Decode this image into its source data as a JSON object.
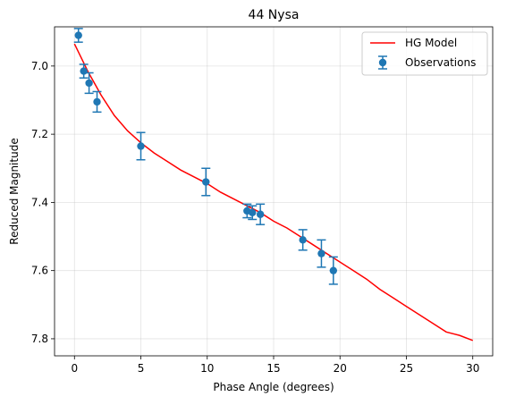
{
  "chart_data": {
    "type": "scatter",
    "title": "44 Nysa",
    "xlabel": "Phase Angle (degrees)",
    "ylabel": "Reduced Magnitude",
    "xlim": [
      -1.5,
      31.5
    ],
    "ylim": [
      7.85,
      6.885
    ],
    "y_inverted": true,
    "x_ticks": [
      0,
      5,
      10,
      15,
      20,
      25,
      30
    ],
    "y_ticks": [
      7.0,
      7.2,
      7.4,
      7.6,
      7.8
    ],
    "grid": true,
    "legend_position": "upper-right",
    "colors": {
      "model": "#ff0000",
      "observations": "#1f77b4"
    },
    "series": [
      {
        "name": "HG Model",
        "kind": "line",
        "x": [
          0,
          0.5,
          1,
          1.5,
          2,
          3,
          4,
          5,
          6,
          7,
          8,
          9,
          10,
          11,
          12,
          13,
          14,
          15,
          16,
          17,
          18,
          19,
          20,
          21,
          22,
          23,
          24,
          25,
          26,
          27,
          28,
          29,
          30
        ],
        "y": [
          6.935,
          6.975,
          7.015,
          7.05,
          7.085,
          7.145,
          7.19,
          7.225,
          7.255,
          7.28,
          7.305,
          7.325,
          7.345,
          7.37,
          7.39,
          7.41,
          7.43,
          7.455,
          7.475,
          7.5,
          7.525,
          7.55,
          7.575,
          7.6,
          7.625,
          7.655,
          7.68,
          7.705,
          7.73,
          7.755,
          7.78,
          7.79,
          7.805
        ]
      },
      {
        "name": "Observations",
        "kind": "errorbar",
        "x": [
          0.3,
          0.7,
          1.1,
          1.7,
          5.0,
          9.9,
          13.0,
          13.4,
          14.0,
          17.2,
          18.6,
          19.5
        ],
        "y": [
          6.91,
          7.015,
          7.05,
          7.105,
          7.235,
          7.34,
          7.425,
          7.43,
          7.435,
          7.51,
          7.55,
          7.6
        ],
        "yerr": [
          0.02,
          0.02,
          0.03,
          0.03,
          0.04,
          0.04,
          0.02,
          0.02,
          0.03,
          0.03,
          0.04,
          0.04
        ]
      }
    ]
  }
}
